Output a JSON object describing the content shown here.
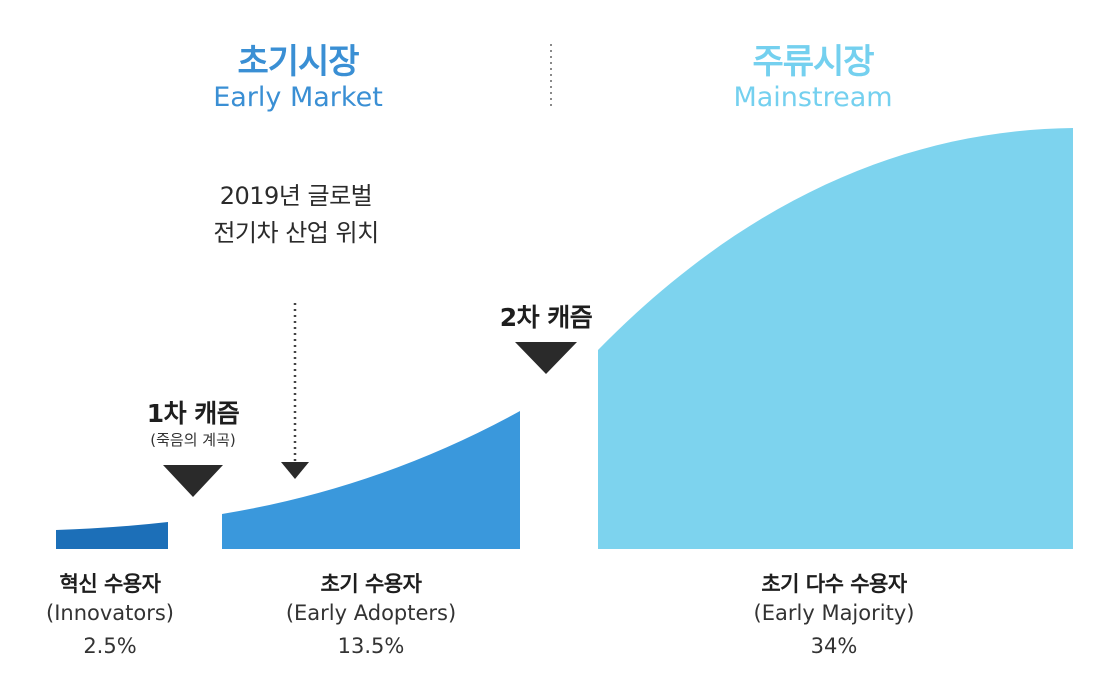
{
  "colors": {
    "innovators": "#1c6fb8",
    "early_adopters": "#3a98dc",
    "early_majority": "#7dd3ee",
    "early_market_text": "#3a8fd4",
    "mainstream_text": "#74d0ef",
    "marker": "#2a2a2a"
  },
  "header": {
    "early_market": {
      "ko": "초기시장",
      "en": "Early Market"
    },
    "mainstream": {
      "ko": "주류시장",
      "en": "Mainstream"
    }
  },
  "annotation": {
    "line1": "2019년 글로벌",
    "line2": "전기차 산업 위치"
  },
  "chasms": [
    {
      "title": "1차 캐즘",
      "subtitle": "(죽음의 계곡)"
    },
    {
      "title": "2차 캐즘",
      "subtitle": ""
    }
  ],
  "segments": [
    {
      "name_ko": "혁신 수용자",
      "name_en": "(Innovators)",
      "share": "2.5%"
    },
    {
      "name_ko": "초기 수용자",
      "name_en": "(Early Adopters)",
      "share": "13.5%"
    },
    {
      "name_ko": "초기 다수 수용자",
      "name_en": "(Early Majority)",
      "share": "34%"
    }
  ]
}
